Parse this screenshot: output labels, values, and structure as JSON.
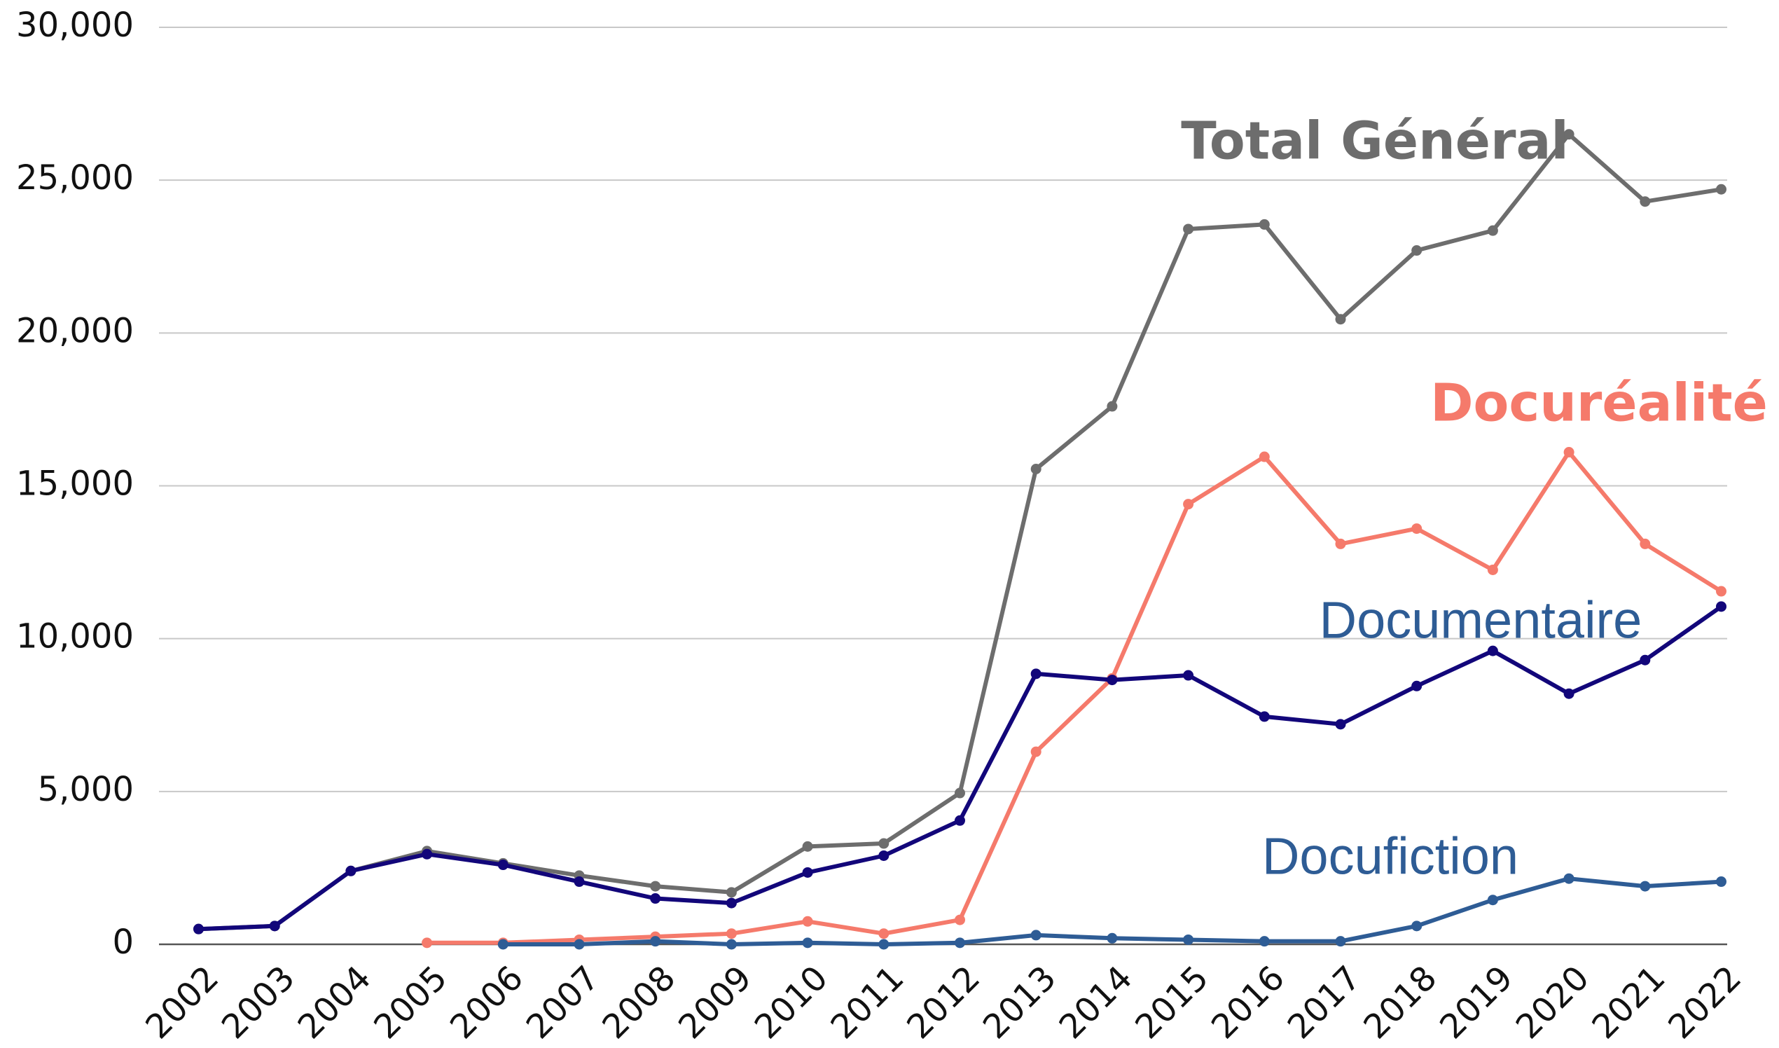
{
  "chart_data": {
    "type": "line",
    "categories": [
      "2002",
      "2003",
      "2004",
      "2005",
      "2006",
      "2007",
      "2008",
      "2009",
      "2010",
      "2011",
      "2012",
      "2013",
      "2014",
      "2015",
      "2016",
      "2017",
      "2018",
      "2019",
      "2020",
      "2021",
      "2022"
    ],
    "series": [
      {
        "name": "Total Général",
        "color": "#6d6d6d",
        "label_color": "#6d6d6d",
        "values": [
          500,
          600,
          2400,
          3050,
          2650,
          2250,
          1900,
          1700,
          3200,
          3300,
          4950,
          15550,
          17600,
          23400,
          23550,
          20450,
          22700,
          23350,
          26500,
          24300,
          24700
        ]
      },
      {
        "name": "Docuréalité",
        "color": "#f57a6b",
        "label_color": "#f57a6b",
        "values": [
          null,
          null,
          null,
          50,
          50,
          150,
          250,
          350,
          750,
          350,
          800,
          6300,
          8700,
          14400,
          15950,
          13100,
          13600,
          12250,
          16100,
          13100,
          11550
        ]
      },
      {
        "name": "Documentaire",
        "color": "#12067a",
        "label_color": "#2e5c95",
        "values": [
          500,
          600,
          2400,
          2950,
          2600,
          2050,
          1500,
          1350,
          2350,
          2900,
          4050,
          8850,
          8650,
          8800,
          7450,
          7200,
          8450,
          9600,
          8200,
          9300,
          11050
        ]
      },
      {
        "name": "Docufiction",
        "color": "#2e5c95",
        "label_color": "#2e5c95",
        "values": [
          null,
          null,
          null,
          null,
          0,
          0,
          100,
          0,
          50,
          0,
          50,
          300,
          200,
          150,
          100,
          100,
          600,
          1450,
          2150,
          1900,
          2050
        ]
      }
    ],
    "ylim": [
      0,
      30000
    ],
    "yticks": [
      0,
      {
        "value": 5000,
        "label": "5,000"
      },
      {
        "value": 10000,
        "label": "10,000"
      },
      {
        "value": 15000,
        "label": "15,000"
      },
      {
        "value": 20000,
        "label": "20,000"
      },
      {
        "value": 25000,
        "label": "25,000"
      },
      {
        "value": 30000,
        "label": "30,000"
      }
    ],
    "grid": true
  }
}
